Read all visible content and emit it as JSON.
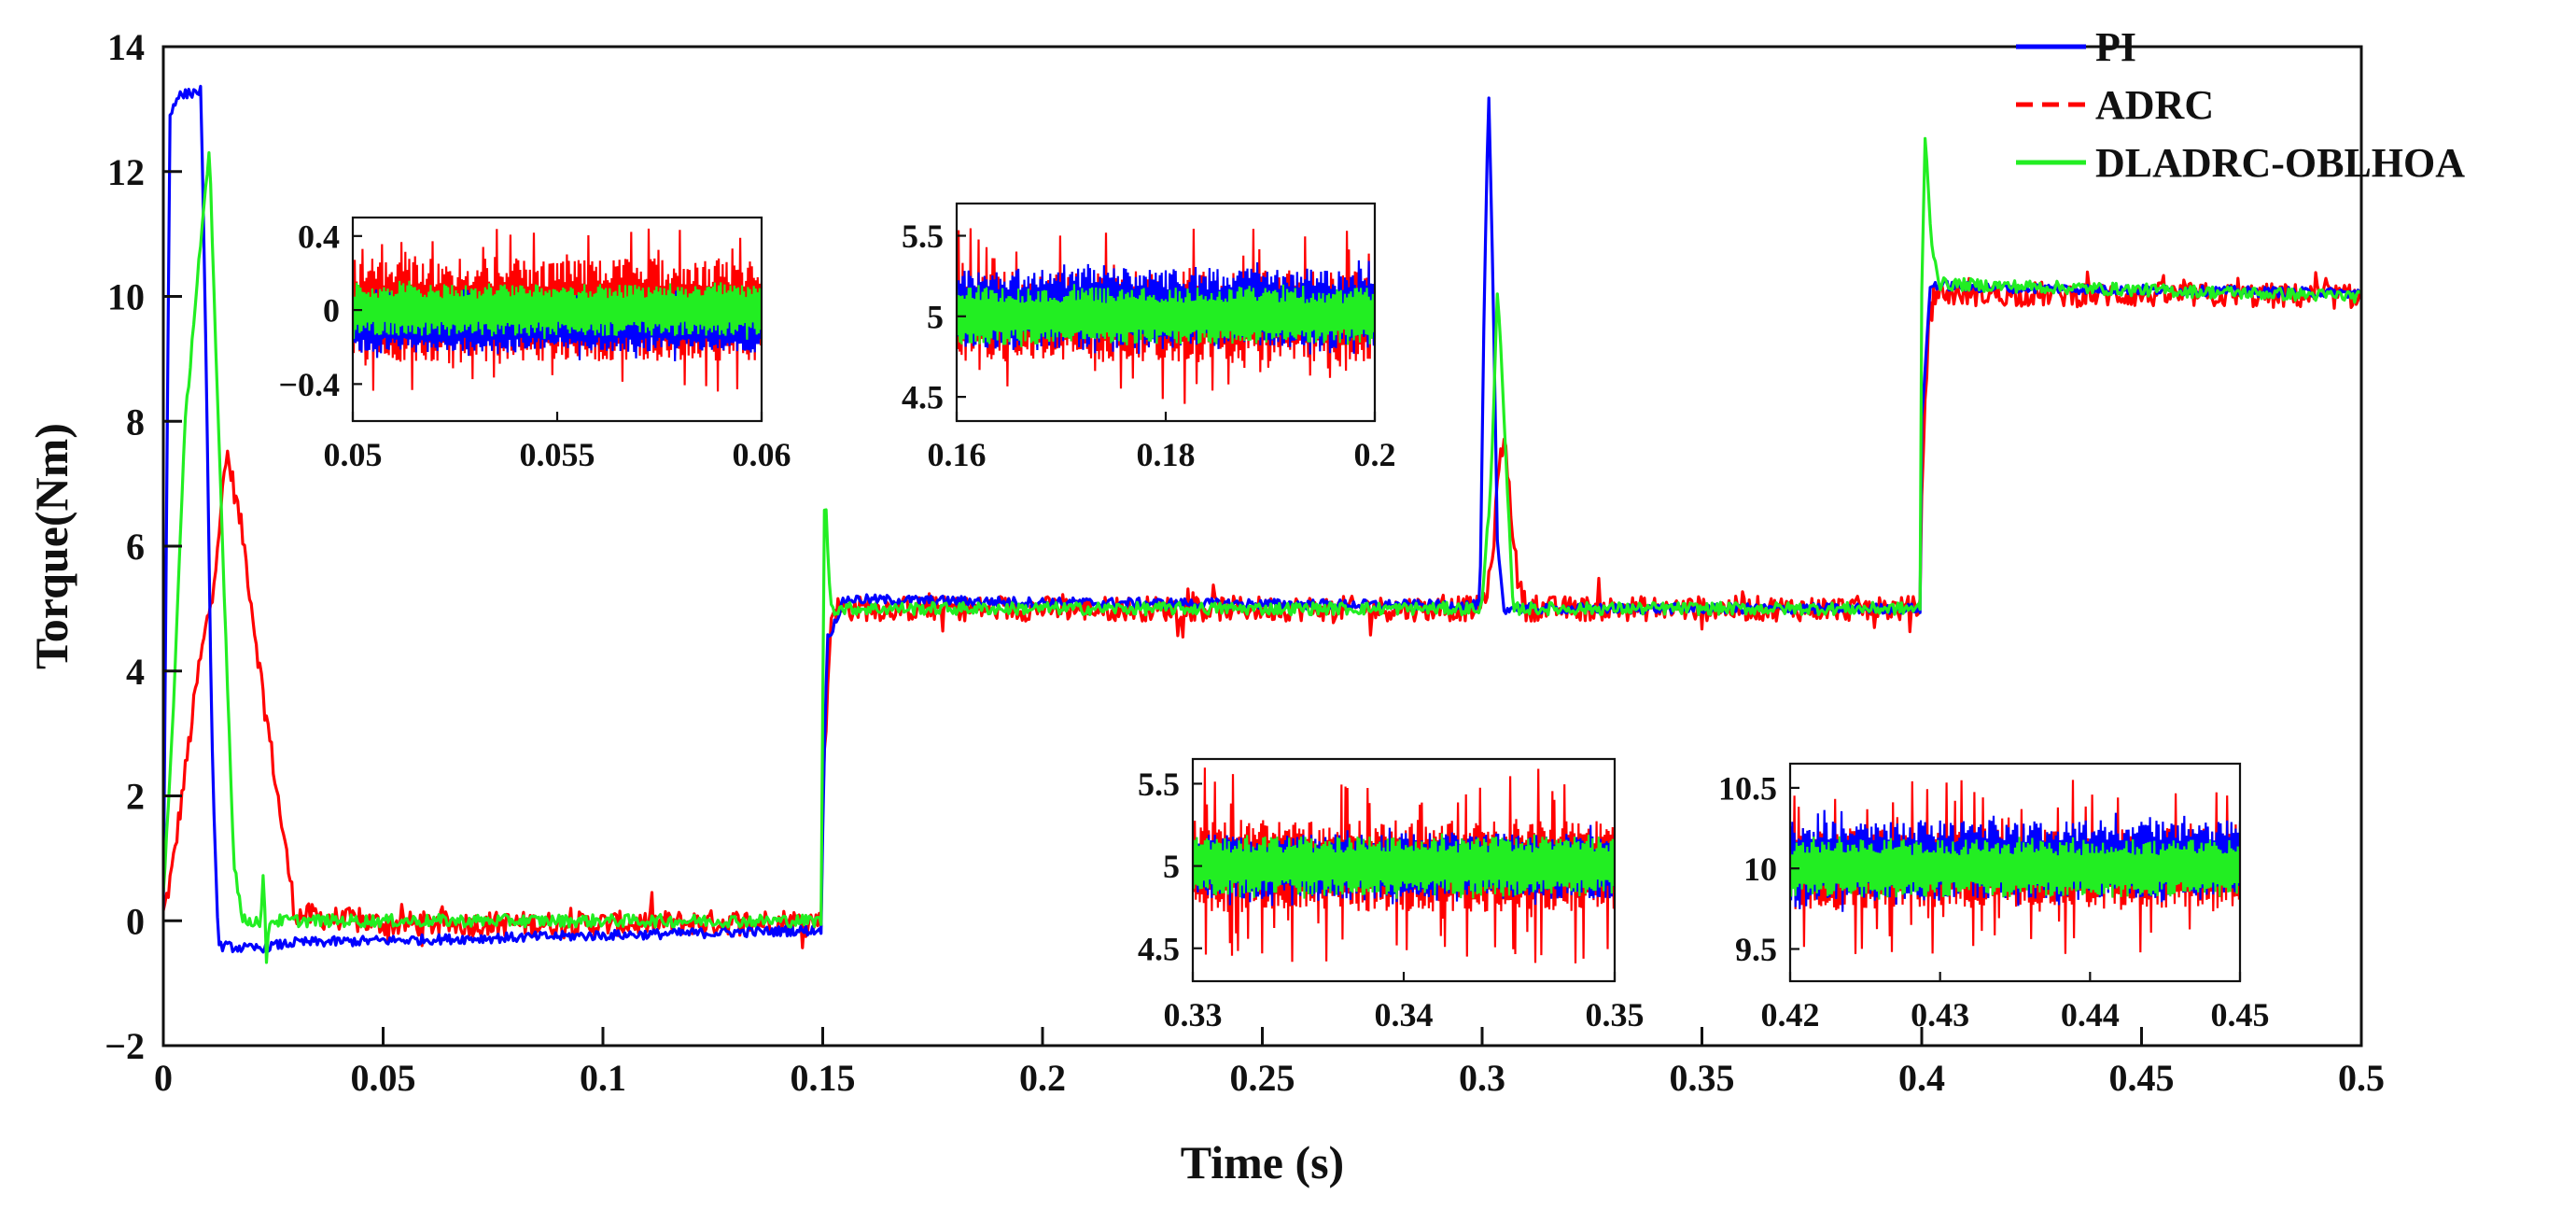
{
  "chart_data": [
    {
      "type": "line",
      "id": "main",
      "xlabel": "Time (s)",
      "ylabel": "Torque(Nm)",
      "xlim": [
        0,
        0.5
      ],
      "ylim": [
        -2,
        14
      ],
      "xticks": [
        0,
        0.05,
        0.1,
        0.15,
        0.2,
        0.25,
        0.3,
        0.35,
        0.4,
        0.45,
        0.5
      ],
      "xtick_labels": [
        "0",
        "0.05",
        "0.1",
        "0.15",
        "0.2",
        "0.25",
        "0.3",
        "0.35",
        "0.4",
        "0.45",
        "0.5"
      ],
      "yticks": [
        -2,
        0,
        2,
        4,
        6,
        8,
        10,
        12,
        14
      ],
      "ytick_labels": [
        "−2",
        "0",
        "2",
        "4",
        "6",
        "8",
        "10",
        "12",
        "14"
      ],
      "legend": {
        "position": "top-right",
        "entries": [
          "PI",
          "ADRC",
          "DLADRC-OBLHOA"
        ]
      },
      "series": [
        {
          "name": "PI",
          "color": "#0000ff",
          "style": "solid",
          "noise": 0.08,
          "points": [
            [
              0,
              0.2
            ],
            [
              0.0015,
              12.9
            ],
            [
              0.003,
              13.2
            ],
            [
              0.0085,
              13.3
            ],
            [
              0.0095,
              10
            ],
            [
              0.011,
              3
            ],
            [
              0.0125,
              -0.4
            ],
            [
              0.02,
              -0.45
            ],
            [
              0.03,
              -0.35
            ],
            [
              0.1499,
              -0.15
            ],
            [
              0.15,
              1.5
            ],
            [
              0.151,
              4.5
            ],
            [
              0.155,
              5.15
            ],
            [
              0.2,
              5.1
            ],
            [
              0.2995,
              5.05
            ],
            [
              0.3005,
              10
            ],
            [
              0.3015,
              13.3
            ],
            [
              0.3025,
              10
            ],
            [
              0.3035,
              6
            ],
            [
              0.305,
              5.0
            ],
            [
              0.3999,
              5.0
            ],
            [
              0.4,
              8
            ],
            [
              0.402,
              10.2
            ],
            [
              0.41,
              10.15
            ],
            [
              0.5,
              10.05
            ]
          ]
        },
        {
          "name": "ADRC",
          "color": "#ff0000",
          "style": "dashed",
          "noise": 0.2,
          "points": [
            [
              0,
              0.1
            ],
            [
              0.002,
              0.8
            ],
            [
              0.008,
              4.0
            ],
            [
              0.011,
              5.2
            ],
            [
              0.0145,
              7.5
            ],
            [
              0.018,
              6.2
            ],
            [
              0.022,
              4.0
            ],
            [
              0.026,
              2.0
            ],
            [
              0.03,
              0.1
            ],
            [
              0.05,
              -0.05
            ],
            [
              0.1,
              -0.05
            ],
            [
              0.1499,
              0.0
            ],
            [
              0.15,
              2
            ],
            [
              0.152,
              5.0
            ],
            [
              0.2,
              5.0
            ],
            [
              0.2995,
              5.0
            ],
            [
              0.302,
              5.5
            ],
            [
              0.3035,
              7.0
            ],
            [
              0.305,
              7.8
            ],
            [
              0.308,
              5.5
            ],
            [
              0.31,
              5.0
            ],
            [
              0.3999,
              5.0
            ],
            [
              0.4,
              7
            ],
            [
              0.402,
              10.05
            ],
            [
              0.5,
              10.0
            ]
          ]
        },
        {
          "name": "DLADRC-OBLHOA",
          "color": "#22ee22",
          "style": "solid",
          "noise": 0.1,
          "points": [
            [
              0,
              0.4
            ],
            [
              0.002,
              3.0
            ],
            [
              0.005,
              8.0
            ],
            [
              0.008,
              10.5
            ],
            [
              0.0105,
              12.3
            ],
            [
              0.012,
              9.0
            ],
            [
              0.014,
              5.0
            ],
            [
              0.016,
              1.0
            ],
            [
              0.018,
              0.0
            ],
            [
              0.0222,
              0.0
            ],
            [
              0.0228,
              0.8
            ],
            [
              0.0234,
              -0.7
            ],
            [
              0.024,
              0.0
            ],
            [
              0.1499,
              0.0
            ],
            [
              0.15,
              3.5
            ],
            [
              0.1505,
              7.4
            ],
            [
              0.151,
              6.0
            ],
            [
              0.152,
              5.0
            ],
            [
              0.2999,
              5.0
            ],
            [
              0.302,
              7.0
            ],
            [
              0.3035,
              10.2
            ],
            [
              0.305,
              8.0
            ],
            [
              0.307,
              5.0
            ],
            [
              0.3999,
              5.0
            ],
            [
              0.4,
              10
            ],
            [
              0.4008,
              12.7
            ],
            [
              0.402,
              11.0
            ],
            [
              0.404,
              10.2
            ],
            [
              0.5,
              10.0
            ]
          ]
        }
      ]
    },
    {
      "type": "line",
      "id": "inset-1",
      "xlim": [
        0.05,
        0.06
      ],
      "ylim": [
        -0.6,
        0.5
      ],
      "xticks": [
        0.05,
        0.055,
        0.06
      ],
      "xtick_labels": [
        "0.05",
        "0.055",
        "0.06"
      ],
      "yticks": [
        -0.4,
        0,
        0.4
      ],
      "ytick_labels": [
        "−0.4",
        "0",
        "0.4"
      ],
      "series": [
        {
          "name": "ADRC",
          "color": "#ff0000",
          "center": 0.0,
          "band": 0.28,
          "spikes": 0.45
        },
        {
          "name": "PI",
          "color": "#0000ff",
          "center": -0.08,
          "band": 0.15,
          "spikes": 0.2
        },
        {
          "name": "DLADRC-OBLHOA",
          "color": "#22ee22",
          "center": 0.0,
          "band": 0.14,
          "spikes": 0.16
        }
      ]
    },
    {
      "type": "line",
      "id": "inset-2",
      "xlim": [
        0.16,
        0.2
      ],
      "ylim": [
        4.35,
        5.7
      ],
      "xticks": [
        0.16,
        0.18,
        0.2
      ],
      "xtick_labels": [
        "0.16",
        "0.18",
        "0.2"
      ],
      "yticks": [
        4.5,
        5,
        5.5
      ],
      "ytick_labels": [
        "4.5",
        "5",
        "5.5"
      ],
      "series": [
        {
          "name": "ADRC",
          "color": "#ff0000",
          "center": 5.0,
          "band": 0.28,
          "spikes": 0.55
        },
        {
          "name": "PI",
          "color": "#0000ff",
          "center": 5.05,
          "band": 0.25,
          "spikes": 0.3
        },
        {
          "name": "DLADRC-OBLHOA",
          "color": "#22ee22",
          "center": 5.0,
          "band": 0.18,
          "spikes": 0.2
        }
      ]
    },
    {
      "type": "line",
      "id": "inset-3",
      "xlim": [
        0.33,
        0.35
      ],
      "ylim": [
        4.3,
        5.65
      ],
      "xticks": [
        0.33,
        0.34,
        0.35
      ],
      "xtick_labels": [
        "0.33",
        "0.34",
        "0.35"
      ],
      "yticks": [
        4.5,
        5,
        5.5
      ],
      "ytick_labels": [
        "4.5",
        "5",
        "5.5"
      ],
      "series": [
        {
          "name": "ADRC",
          "color": "#ff0000",
          "center": 5.0,
          "band": 0.28,
          "spikes": 0.6
        },
        {
          "name": "PI",
          "color": "#0000ff",
          "center": 5.0,
          "band": 0.2,
          "spikes": 0.25
        },
        {
          "name": "DLADRC-OBLHOA",
          "color": "#22ee22",
          "center": 5.0,
          "band": 0.18,
          "spikes": 0.2
        }
      ]
    },
    {
      "type": "line",
      "id": "inset-4",
      "xlim": [
        0.42,
        0.45
      ],
      "ylim": [
        9.3,
        10.65
      ],
      "xticks": [
        0.42,
        0.43,
        0.44,
        0.45
      ],
      "xtick_labels": [
        "0.42",
        "0.43",
        "0.44",
        "0.45"
      ],
      "yticks": [
        9.5,
        10,
        10.5
      ],
      "ytick_labels": [
        "9.5",
        "10",
        "10.5"
      ],
      "series": [
        {
          "name": "ADRC",
          "color": "#ff0000",
          "center": 10.0,
          "band": 0.25,
          "spikes": 0.55
        },
        {
          "name": "PI",
          "color": "#0000ff",
          "center": 10.05,
          "band": 0.25,
          "spikes": 0.32
        },
        {
          "name": "DLADRC-OBLHOA",
          "color": "#22ee22",
          "center": 10.0,
          "band": 0.18,
          "spikes": 0.2
        }
      ]
    }
  ]
}
